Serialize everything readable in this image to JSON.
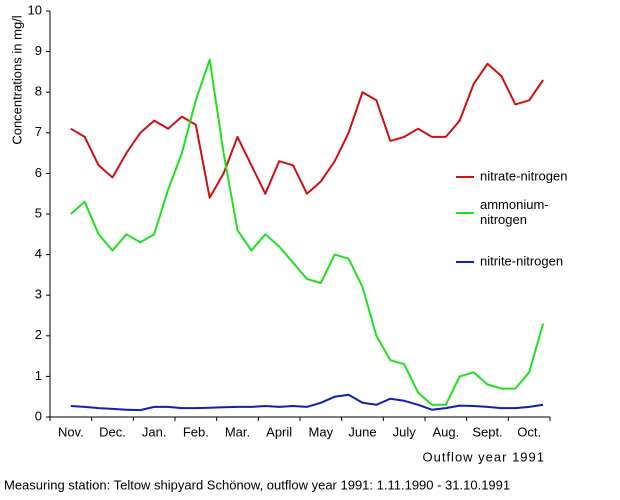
{
  "chart_data": {
    "type": "line",
    "y_label": "Concentrations in mg/l",
    "x_label": "Outflow year 1991",
    "caption": "Measuring station: Teltow shipyard Schönow, outflow year 1991: 1.11.1990 - 31.10.1991",
    "categories": [
      null,
      "Nov.",
      null,
      null,
      "Dec.",
      null,
      null,
      "Jan.",
      null,
      null,
      "Feb.",
      null,
      null,
      "Mar.",
      null,
      null,
      "April",
      null,
      null,
      "May",
      null,
      null,
      "June",
      null,
      null,
      "July",
      null,
      null,
      "Aug.",
      null,
      null,
      "Sept.",
      null,
      null,
      "Oct.",
      null
    ],
    "ylim": [
      0,
      10
    ],
    "yticks": [
      0,
      1,
      2,
      3,
      4,
      5,
      6,
      7,
      8,
      9,
      10
    ],
    "grid": false,
    "legend": "right",
    "series": [
      {
        "name": "nitrate-nitrogen",
        "color": "#d01010",
        "values": [
          null,
          7.1,
          6.9,
          6.2,
          5.9,
          6.5,
          7.0,
          7.3,
          7.1,
          7.4,
          7.2,
          5.4,
          6.0,
          6.9,
          6.2,
          5.5,
          6.3,
          6.2,
          5.5,
          5.8,
          6.3,
          7.0,
          8.0,
          7.8,
          6.8,
          6.9,
          7.1,
          6.9,
          6.9,
          7.3,
          8.2,
          8.7,
          8.4,
          7.7,
          7.8,
          8.3
        ]
      },
      {
        "name": "ammonium-nitrogen",
        "color": "#20e020",
        "values": [
          null,
          5.0,
          5.3,
          4.5,
          4.1,
          4.5,
          4.3,
          4.5,
          5.6,
          6.5,
          7.8,
          8.8,
          6.5,
          4.6,
          4.1,
          4.5,
          4.2,
          3.8,
          3.4,
          3.3,
          4.0,
          3.9,
          3.2,
          2.0,
          1.4,
          1.3,
          0.6,
          0.3,
          0.3,
          1.0,
          1.1,
          0.8,
          0.7,
          0.7,
          1.1,
          2.3
        ]
      },
      {
        "name": "nitrite-nitrogen",
        "color": "#1020b0",
        "values": [
          null,
          0.27,
          0.25,
          0.22,
          0.2,
          0.18,
          0.17,
          0.25,
          0.25,
          0.22,
          0.22,
          0.23,
          0.24,
          0.25,
          0.25,
          0.27,
          0.25,
          0.27,
          0.25,
          0.35,
          0.5,
          0.55,
          0.35,
          0.3,
          0.45,
          0.4,
          0.3,
          0.18,
          0.22,
          0.28,
          0.27,
          0.25,
          0.22,
          0.22,
          0.25,
          0.3
        ]
      }
    ]
  }
}
